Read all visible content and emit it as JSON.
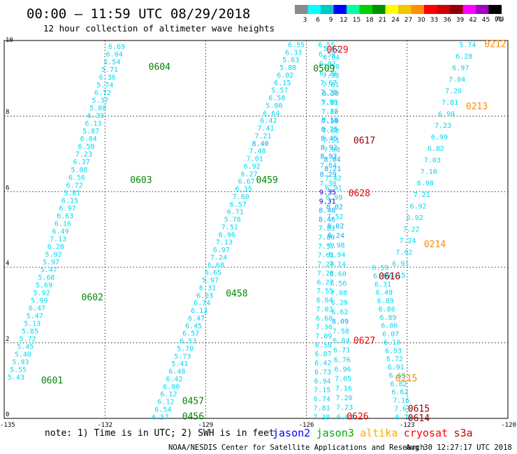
{
  "header": {
    "title": "00:00 – 11:59 UTC 08/29/2018",
    "subtitle": "12 hour collection of altimeter wave heights"
  },
  "scale": {
    "unit": "(ft)",
    "labels": [
      "3",
      "6",
      "9",
      "12",
      "15",
      "18",
      "21",
      "24",
      "27",
      "30",
      "33",
      "36",
      "39",
      "42",
      "45",
      "70"
    ],
    "colors": [
      "#8a8a8a",
      "#00ffff",
      "#00c8c8",
      "#0000ff",
      "#00ffa0",
      "#00d000",
      "#009000",
      "#ffff00",
      "#f0c800",
      "#ff9000",
      "#ff0000",
      "#d00000",
      "#900000",
      "#ff00ff",
      "#a000c0",
      "#000000"
    ]
  },
  "chart_data": {
    "type": "scatter",
    "xlim": [
      -135,
      -120
    ],
    "ylim": [
      0,
      10
    ],
    "x_ticks": [
      "-135",
      "-132",
      "-129",
      "-126",
      "-123",
      "-120"
    ],
    "y_ticks": [
      "0",
      "2",
      "4",
      "6",
      "8",
      "10"
    ],
    "grid": true,
    "tracks": [
      {
        "name": "0601",
        "satellite": "jason3",
        "x0": -134.65,
        "y0": 1.1,
        "x1": -131.65,
        "y1": 9.85,
        "values": [
          "5.43",
          "5.55",
          "5.93",
          "5.40",
          "5.45",
          "5.72",
          "5.85",
          "5.13",
          "5.47",
          "6.47",
          "5.99",
          "5.92",
          "5.69",
          "5.68",
          "5.47",
          "5.97",
          "5.92",
          "6.28",
          "7.13",
          "6.49",
          "6.16",
          "6.63",
          "6.97",
          "6.15",
          "5.81",
          "6.72",
          "6.56",
          "5.88",
          "6.37",
          "7.23",
          "6.50",
          "6.04",
          "5.87",
          "6.13",
          "6.39",
          "5.80",
          "5.37",
          "6.72",
          "5.74",
          "6.36",
          "5.71",
          "5.54",
          "6.04",
          "6.69"
        ]
      },
      {
        "name": "0456",
        "satellite": "jason3",
        "x0": -130.35,
        "y0": 0.05,
        "x1": -126.3,
        "y1": 9.9,
        "values": [
          "6.57",
          "6.54",
          "6.12",
          "6.12",
          "6.00",
          "6.42",
          "6.48",
          "5.41",
          "5.73",
          "5.70",
          "6.53",
          "6.57",
          "6.45",
          "6.47",
          "6.13",
          "6.74",
          "6.03",
          "6.31",
          "5.97",
          "6.65",
          "6.68",
          "7.24",
          "6.97",
          "7.13",
          "6.96",
          "7.51",
          "5.78",
          "6.71",
          "6.57",
          "7.60",
          "6.35",
          "6.67",
          "6.27",
          "6.92",
          "7.01",
          "7.48",
          "8.40",
          "7.21",
          "7.41",
          "6.42",
          "6.64",
          "5.80",
          "6.58",
          "5.57",
          "6.15",
          "6.02",
          "5.88",
          "5.63",
          "6.33",
          "6.55"
        ]
      },
      {
        "name": "0626",
        "satellite": "jason3",
        "x0": -125.55,
        "y0": 0.05,
        "x1": -125.25,
        "y1": 9.8,
        "values": [
          "7.30",
          "7.81",
          "6.74",
          "7.15",
          "6.94",
          "6.73",
          "6.42",
          "6.87",
          "6.58",
          "7.09",
          "7.30",
          "6.60",
          "7.03",
          "6.64",
          "7.55",
          "6.27",
          "7.26",
          "7.24",
          "7.61",
          "7.57",
          "7.80",
          "7.83",
          "8.46",
          "8.40",
          "9.31",
          "9.35",
          "7.30",
          "8.29",
          "7.84",
          "8.93",
          "8.92",
          "8.45",
          "8.75",
          "8.18",
          "7.40",
          "7.81",
          "8.30",
          "7.81",
          "7.98",
          "7.58",
          "6.94",
          "5.62"
        ]
      },
      {
        "name": "0617",
        "satellite": "jason3",
        "x0": -124.85,
        "y0": 0.05,
        "x1": -125.4,
        "y1": 9.9,
        "values": [
          "6.62",
          "7.23",
          "7.20",
          "7.16",
          "7.05",
          "6.96",
          "6.76",
          "6.71",
          "6.84",
          "7.58",
          "8.09",
          "6.62",
          "6.29",
          "7.08",
          "6.56",
          "6.60",
          "7.14",
          "6.94",
          "6.98",
          "8.24",
          "8.02",
          "7.52",
          "8.02",
          "6.99",
          "6.91",
          "7.42",
          "8.21",
          "8.04",
          "7.08",
          "7.51",
          "7.80",
          "7.50",
          "7.32",
          "5.99",
          "7.25",
          "7.67",
          "6.20",
          "6.02",
          "6.59",
          "6.55"
        ]
      },
      {
        "name": "0615",
        "satellite": "jason3",
        "x0": -123.1,
        "y0": 0.05,
        "x1": -123.8,
        "y1": 4.0,
        "values": [
          "6.25",
          "7.61",
          "7.16",
          "6.62",
          "6.82",
          "6.69",
          "6.91",
          "6.72",
          "6.53",
          "6.13",
          "6.07",
          "6.06",
          "6.89",
          "6.86",
          "6.89",
          "6.49",
          "6.31",
          "6.56",
          "6.59"
        ]
      },
      {
        "name": "0212",
        "satellite": "altika",
        "x0": -123.3,
        "y0": 3.8,
        "x1": -121.2,
        "y1": 9.9,
        "values": [
          "6.15",
          "6.91",
          "7.02",
          "7.24",
          "7.22",
          "6.92",
          "6.92",
          "7.21",
          "6.98",
          "7.10",
          "7.03",
          "6.82",
          "6.99",
          "7.23",
          "6.99",
          "7.81",
          "7.26",
          "7.04",
          "6.97",
          "6.28",
          "5.74"
        ]
      }
    ]
  },
  "pass_labels": [
    {
      "id": "0601",
      "x": -133.9,
      "y": 1.0,
      "color": "#008800"
    },
    {
      "id": "0602",
      "x": -132.7,
      "y": 3.2,
      "color": "#008800"
    },
    {
      "id": "0603",
      "x": -131.25,
      "y": 6.3,
      "color": "#008800"
    },
    {
      "id": "0604",
      "x": -130.7,
      "y": 9.3,
      "color": "#008800"
    },
    {
      "id": "0456",
      "x": -129.7,
      "y": 0.05,
      "color": "#008800"
    },
    {
      "id": "0457",
      "x": -129.7,
      "y": 0.45,
      "color": "#008800"
    },
    {
      "id": "0458",
      "x": -128.4,
      "y": 3.3,
      "color": "#008800"
    },
    {
      "id": "0459",
      "x": -127.5,
      "y": 6.3,
      "color": "#008800"
    },
    {
      "id": "0509",
      "x": -125.8,
      "y": 9.25,
      "color": "#008800"
    },
    {
      "id": "0626",
      "x": -124.8,
      "y": 0.05,
      "color": "#ee0000"
    },
    {
      "id": "0627",
      "x": -124.6,
      "y": 2.05,
      "color": "#ee0000"
    },
    {
      "id": "0628",
      "x": -124.75,
      "y": 5.95,
      "color": "#ee0000"
    },
    {
      "id": "0629",
      "x": -125.4,
      "y": 9.75,
      "color": "#ee0000"
    },
    {
      "id": "0617",
      "x": -124.6,
      "y": 7.35,
      "color": "#900000"
    },
    {
      "id": "0616",
      "x": -123.85,
      "y": 3.75,
      "color": "#900000"
    },
    {
      "id": "0615",
      "x": -122.98,
      "y": 0.25,
      "color": "#900000"
    },
    {
      "id": "0614",
      "x": -122.98,
      "y": 0.0,
      "color": "#900000"
    },
    {
      "id": "0215",
      "x": -123.35,
      "y": 1.05,
      "color": "#ff8800"
    },
    {
      "id": "0214",
      "x": -122.5,
      "y": 4.6,
      "color": "#ff8800"
    },
    {
      "id": "0213",
      "x": -121.25,
      "y": 8.25,
      "color": "#ff8800"
    },
    {
      "id": "0212",
      "x": -120.7,
      "y": 9.9,
      "color": "#ff8800"
    }
  ],
  "footer": {
    "note": "note:  1) Time is in UTC; 2) SWH is in feet",
    "satellites": [
      {
        "name": "jason2",
        "color": "#0000ff"
      },
      {
        "name": "jason3",
        "color": "#00aa00"
      },
      {
        "name": "altika",
        "color": "#ffaa00"
      },
      {
        "name": "cryosat",
        "color": "#ff0000"
      },
      {
        "name": "s3a",
        "color": "#cc0000"
      }
    ],
    "credit": "NOAA/NESDIS Center for Satellite Applications and Research",
    "timestamp": "Aug 30 12:27:17 UTC 2018"
  }
}
